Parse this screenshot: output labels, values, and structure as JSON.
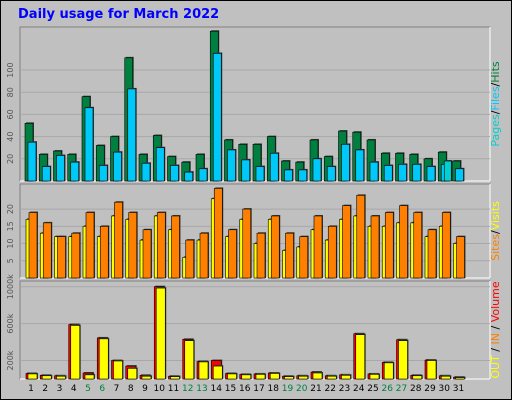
{
  "colors": {
    "background": "#c0c0c0",
    "title": "#0000ff",
    "hits": "#008040",
    "files": "#00c8f8",
    "pages": "#00d0d0",
    "visits": "#ffff00",
    "sites": "#ff8000",
    "volume": "#ff0000",
    "in": "#ff8000",
    "out": "#ffff00"
  },
  "chart_data": {
    "type": "bar",
    "title": "Daily usage for March 2022",
    "x": [
      "1",
      "2",
      "3",
      "4",
      "5",
      "6",
      "7",
      "8",
      "9",
      "10",
      "11",
      "12",
      "13",
      "14",
      "15",
      "16",
      "17",
      "18",
      "19",
      "20",
      "21",
      "22",
      "23",
      "24",
      "25",
      "26",
      "27",
      "28",
      "29",
      "30",
      "31"
    ],
    "weekend_days": [
      5,
      6,
      12,
      13,
      19,
      20,
      26,
      27
    ],
    "panels": [
      {
        "name": "hits-files-pages",
        "legend": [
          "Hits",
          "Files",
          "Pages"
        ],
        "legend_separator": "/",
        "yticks": [
          {
            "v": 20,
            "label": "20"
          },
          {
            "v": 40,
            "label": "40"
          },
          {
            "v": 60,
            "label": "60"
          },
          {
            "v": 80,
            "label": "80"
          },
          {
            "v": 100,
            "label": "100"
          }
        ],
        "ylim": [
          0,
          137
        ],
        "series": [
          {
            "name": "Hits",
            "values": [
              52,
              24,
              27,
              24,
              76,
              32,
              40,
              111,
              24,
              41,
              22,
              17,
              24,
              135,
              37,
              33,
              33,
              40,
              18,
              17,
              37,
              22,
              45,
              44,
              37,
              25,
              25,
              24,
              20,
              26,
              18
            ]
          },
          {
            "name": "Files",
            "values": [
              35,
              13,
              23,
              17,
              66,
              14,
              26,
              83,
              16,
              30,
              14,
              8,
              11,
              115,
              28,
              19,
              13,
              25,
              10,
              10,
              20,
              13,
              33,
              28,
              17,
              14,
              15,
              15,
              13,
              15,
              11
            ]
          },
          {
            "name": "Pages",
            "values": [
              0,
              0,
              0,
              0,
              0,
              0,
              0,
              0,
              0,
              0,
              0,
              0,
              0,
              0,
              0,
              0,
              0,
              0,
              0,
              0,
              0,
              0,
              0,
              0,
              0,
              0,
              0,
              0,
              0,
              18,
              0
            ]
          }
        ]
      },
      {
        "name": "visits-sites",
        "legend": [
          "Visits",
          "Sites"
        ],
        "legend_separator": "/",
        "yticks": [
          {
            "v": 5,
            "label": "5"
          },
          {
            "v": 10,
            "label": "10"
          },
          {
            "v": 15,
            "label": "15"
          },
          {
            "v": 20,
            "label": "20"
          }
        ],
        "ylim": [
          0,
          26.7
        ],
        "series": [
          {
            "name": "Visits",
            "values": [
              17,
              13,
              12,
              12,
              15,
              12,
              18,
              17,
              11,
              18,
              14,
              6,
              11,
              23,
              12,
              17,
              10,
              17,
              8,
              9,
              14,
              11,
              17,
              18,
              15,
              15,
              16,
              16,
              12,
              15,
              10
            ]
          },
          {
            "name": "Sites",
            "values": [
              19,
              16,
              12,
              13,
              19,
              15,
              22,
              19,
              14,
              19,
              18,
              11,
              13,
              26,
              14,
              20,
              13,
              18,
              13,
              12,
              18,
              15,
              21,
              24,
              18,
              19,
              21,
              19,
              14,
              19,
              12
            ]
          }
        ]
      },
      {
        "name": "volume",
        "legend": [
          "Volume",
          "IN",
          "OUT"
        ],
        "legend_separator": " / ",
        "yticks": [
          {
            "v": 200000,
            "label": "200k"
          },
          {
            "v": 600000,
            "label": "600k"
          },
          {
            "v": 1000000,
            "label": "1000k"
          }
        ],
        "ylim": [
          0,
          1040000
        ],
        "series": [
          {
            "name": "Volume",
            "values": [
              60000,
              40000,
              35000,
              590000,
              65000,
              445000,
              200000,
              140000,
              40000,
              1000000,
              30000,
              430000,
              190000,
              200000,
              60000,
              50000,
              55000,
              65000,
              30000,
              35000,
              75000,
              35000,
              45000,
              490000,
              55000,
              180000,
              425000,
              40000,
              205000,
              35000,
              20000
            ]
          },
          {
            "name": "IN",
            "values": [
              0,
              0,
              0,
              0,
              0,
              0,
              0,
              0,
              0,
              0,
              0,
              0,
              0,
              0,
              0,
              0,
              0,
              0,
              0,
              0,
              0,
              0,
              0,
              0,
              0,
              0,
              0,
              0,
              0,
              0,
              0
            ]
          },
          {
            "name": "OUT",
            "values": [
              55000,
              35000,
              30000,
              580000,
              45000,
              435000,
              195000,
              115000,
              30000,
              985000,
              25000,
              415000,
              185000,
              140000,
              55000,
              45000,
              50000,
              60000,
              25000,
              30000,
              65000,
              30000,
              40000,
              480000,
              50000,
              175000,
              415000,
              35000,
              200000,
              30000,
              15000
            ]
          }
        ]
      }
    ]
  }
}
